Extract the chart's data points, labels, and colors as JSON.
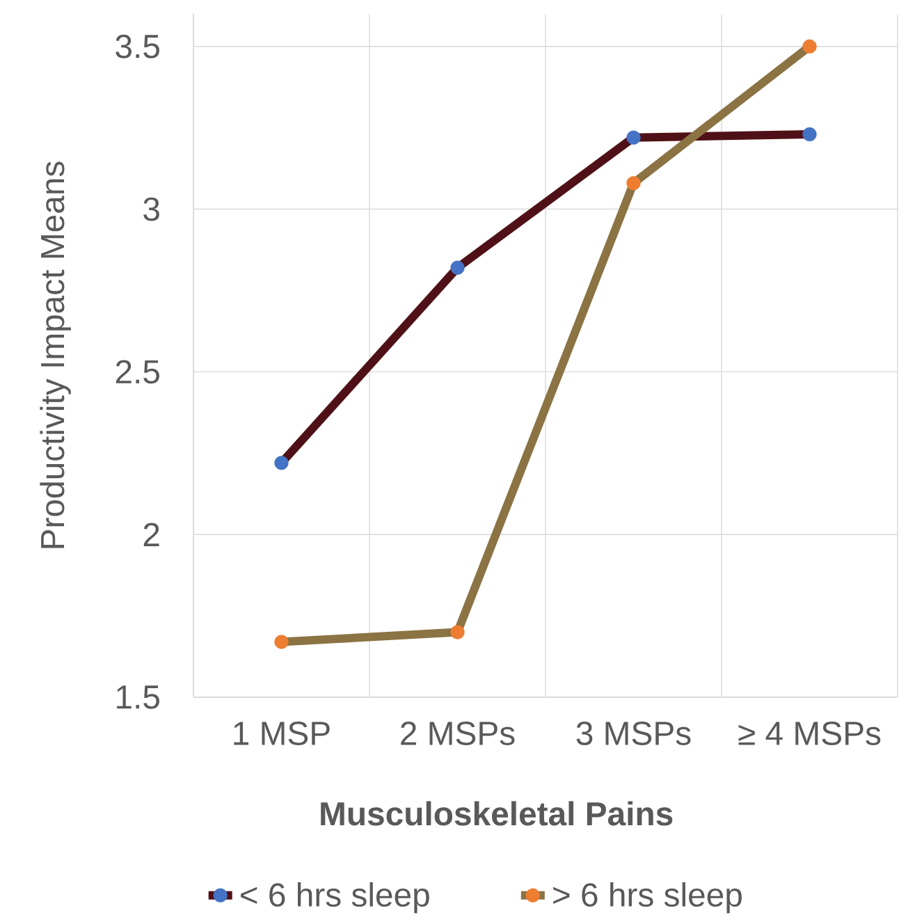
{
  "chart_data": {
    "type": "line",
    "xlabel": "Musculoskeletal Pains",
    "ylabel": "Productivity Impact Means",
    "categories": [
      "1 MSP",
      "2 MSPs",
      "3 MSPs",
      "≥ 4 MSPs"
    ],
    "series": [
      {
        "name": "< 6 hrs sleep",
        "color": "#4f1117",
        "colors": [
          "#4472c4",
          "#4472c4",
          "#4472c4",
          "#4472c4"
        ],
        "values": [
          2.22,
          2.82,
          3.22,
          3.23
        ]
      },
      {
        "name": "> 6 hrs sleep",
        "color": "#8b7344",
        "colors": [
          "#ed7d31",
          "#ed7d31",
          "#ed7d31",
          "#ed7d31"
        ],
        "values": [
          1.67,
          1.7,
          3.08,
          3.5
        ]
      }
    ],
    "ylim": [
      1.5,
      3.6
    ],
    "yticks": [
      1.5,
      2,
      2.5,
      3,
      3.5
    ],
    "grid": true,
    "legend": "bottom",
    "marker": "circle",
    "line_style": "solid"
  }
}
